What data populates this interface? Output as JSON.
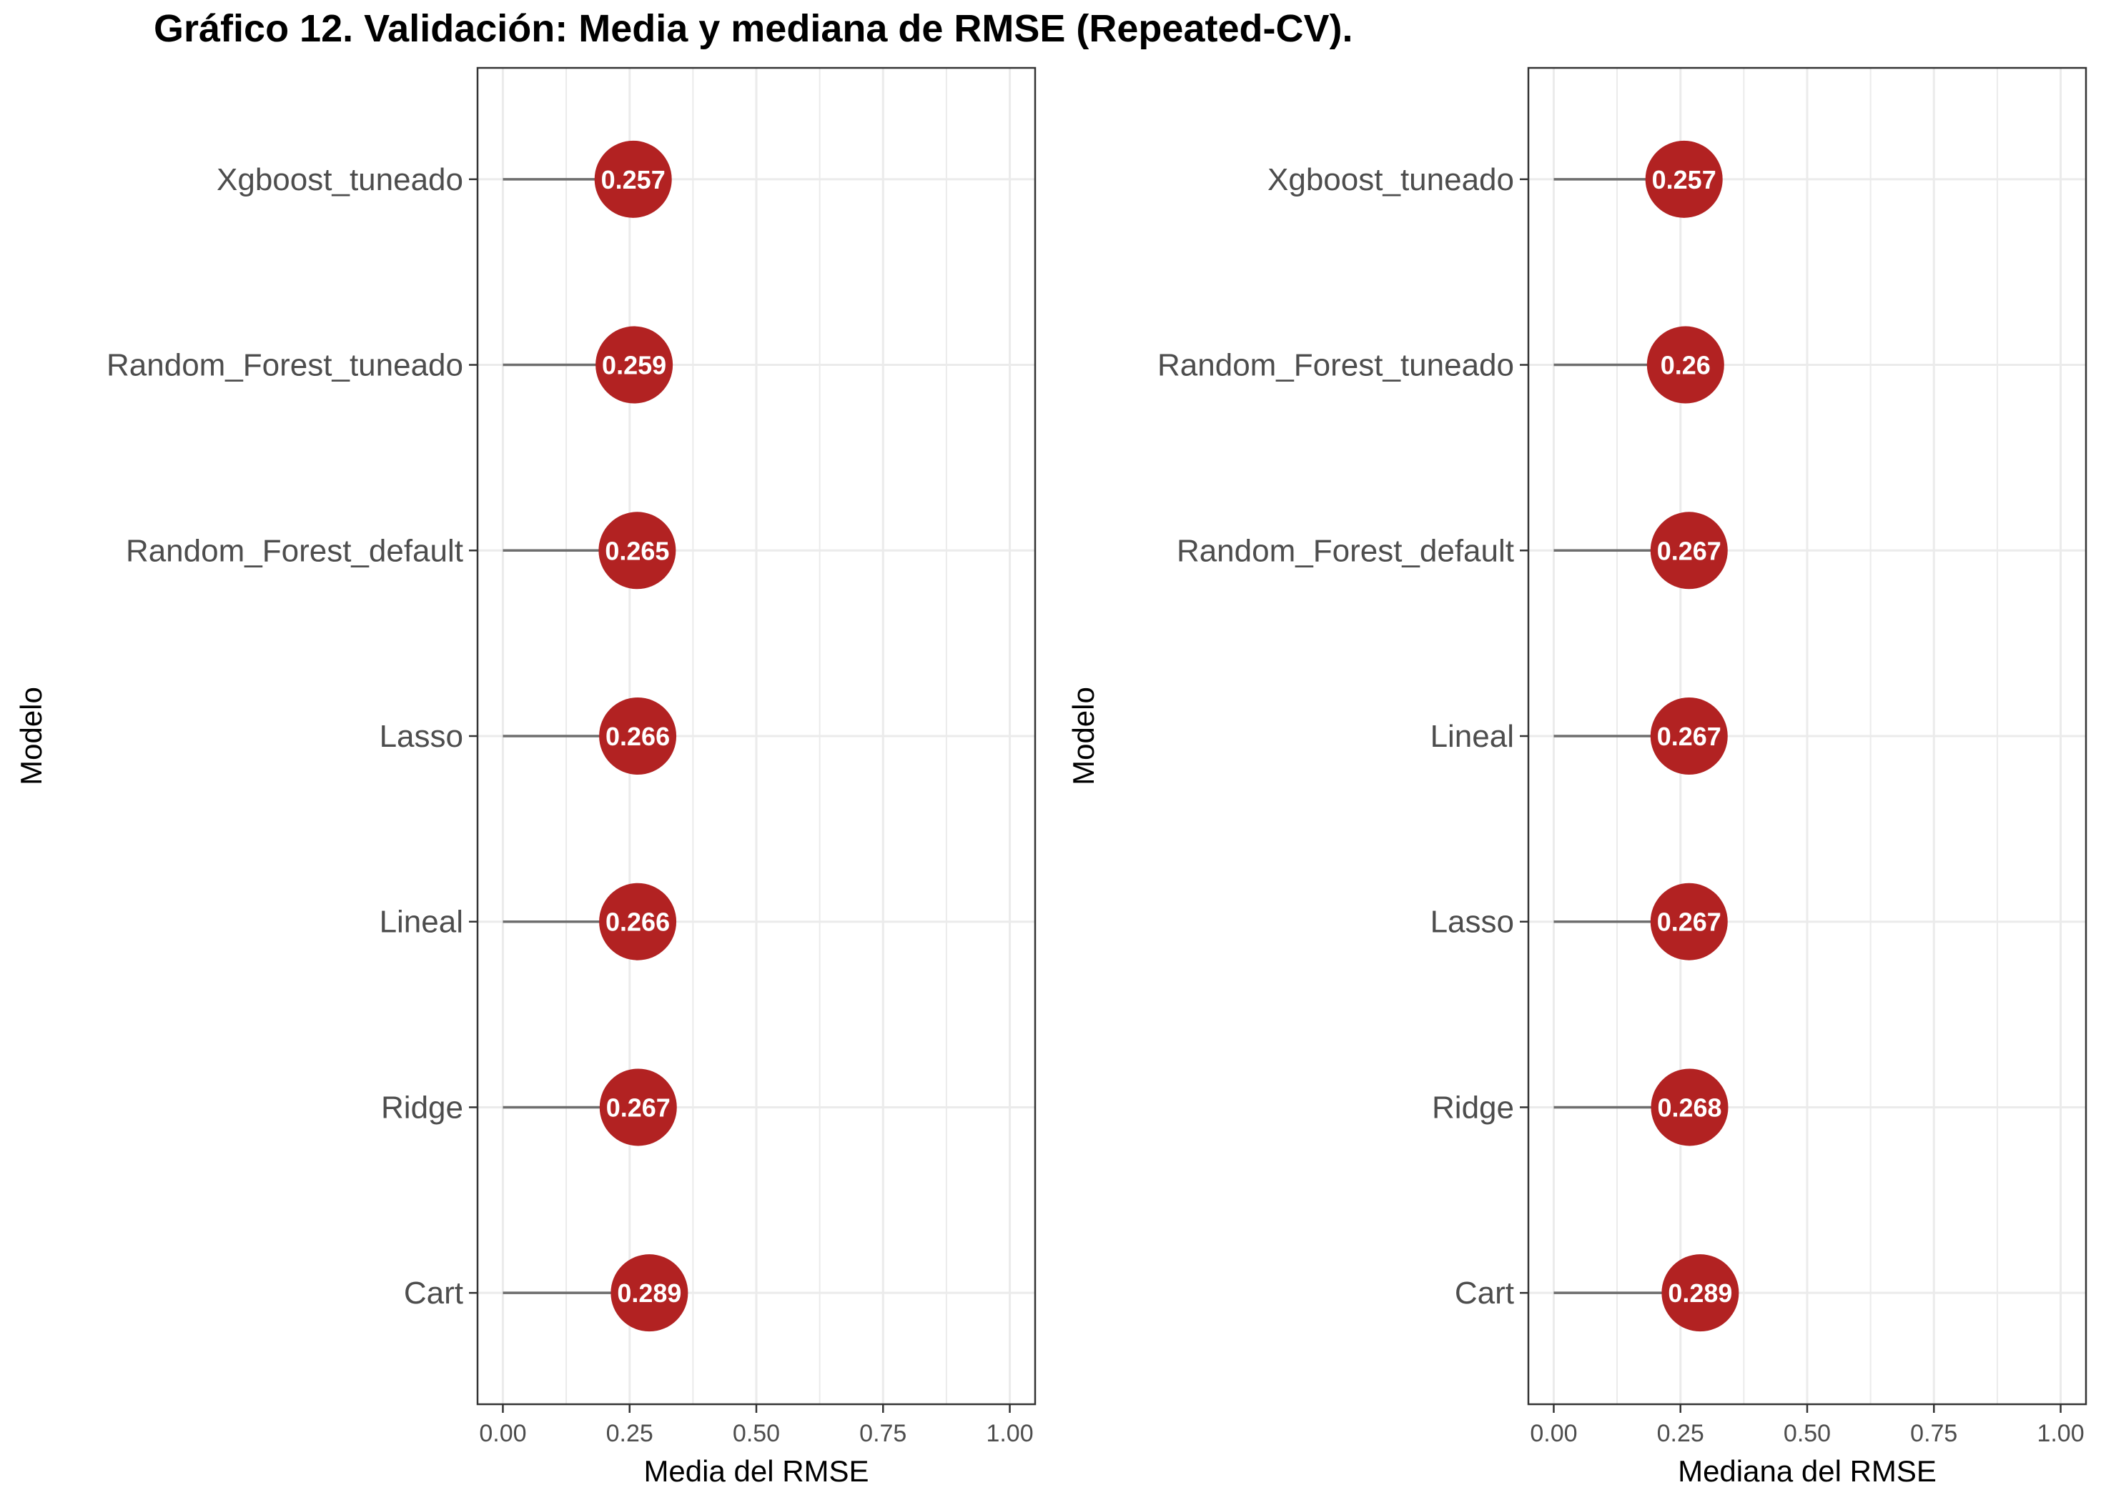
{
  "title": "Gráfico 12. Validación: Media y mediana de RMSE (Repeated-CV).",
  "colors": {
    "point": "#b22222",
    "segment": "#6e6e6e",
    "grid": "#ebebeb",
    "panel_border": "#333333",
    "label_text": "#ffffff"
  },
  "chart_data": [
    {
      "type": "lollipop",
      "orientation": "horizontal",
      "categories": [
        "Xgboost_tuneado",
        "Random_Forest_tuneado",
        "Random_Forest_default",
        "Lasso",
        "Lineal",
        "Ridge",
        "Cart"
      ],
      "values": [
        0.257,
        0.259,
        0.265,
        0.266,
        0.266,
        0.267,
        0.289
      ],
      "data_labels": [
        "0.257",
        "0.259",
        "0.265",
        "0.266",
        "0.266",
        "0.267",
        "0.289"
      ],
      "xlabel": "Media del RMSE",
      "ylabel": "Modelo",
      "xlim": [
        0,
        1
      ],
      "xticks": [
        "0.00",
        "0.25",
        "0.50",
        "0.75",
        "1.00"
      ],
      "grid": true
    },
    {
      "type": "lollipop",
      "orientation": "horizontal",
      "categories": [
        "Xgboost_tuneado",
        "Random_Forest_tuneado",
        "Random_Forest_default",
        "Lineal",
        "Lasso",
        "Ridge",
        "Cart"
      ],
      "values": [
        0.257,
        0.26,
        0.267,
        0.267,
        0.267,
        0.268,
        0.289
      ],
      "data_labels": [
        "0.257",
        "0.26",
        "0.267",
        "0.267",
        "0.267",
        "0.268",
        "0.289"
      ],
      "xlabel": "Mediana del RMSE",
      "ylabel": "Modelo",
      "xlim": [
        0,
        1
      ],
      "xticks": [
        "0.00",
        "0.25",
        "0.50",
        "0.75",
        "1.00"
      ],
      "grid": true
    }
  ]
}
